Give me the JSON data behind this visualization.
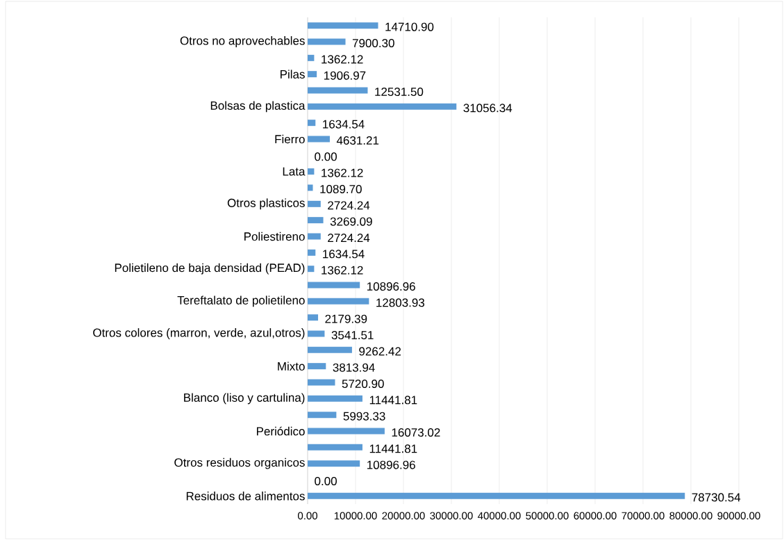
{
  "chart_data": {
    "type": "bar",
    "orientation": "horizontal",
    "color": "#5b9bd5",
    "grid": "x",
    "categories": [
      null,
      "Otros no aprovechables",
      null,
      "Pilas",
      null,
      "Bolsas de plastica",
      null,
      "Fierro",
      null,
      "Lata",
      null,
      "Otros plasticos",
      null,
      "Poliestireno",
      null,
      "Polietileno de baja densidad (PEAD)",
      null,
      "Tereftalato de polietileno",
      null,
      "Otros colores (marron, verde, azul,otros)",
      null,
      "Mixto",
      null,
      "Blanco (liso y cartulina)",
      null,
      "Periódico",
      null,
      "Otros residuos organicos",
      null,
      "Residuos de alimentos"
    ],
    "values": [
      14710.9,
      7900.3,
      1362.12,
      1906.97,
      12531.5,
      31056.34,
      1634.54,
      4631.21,
      0.0,
      1362.12,
      1089.7,
      2724.24,
      3269.09,
      2724.24,
      1634.54,
      1362.12,
      10896.96,
      12803.93,
      2179.39,
      3541.51,
      9262.42,
      3813.94,
      5720.9,
      11441.81,
      5993.33,
      16073.02,
      11441.81,
      10896.96,
      0.0,
      78730.54
    ],
    "value_labels": [
      "14710.90",
      "7900.30",
      "1362.12",
      "1906.97",
      "12531.50",
      "31056.34",
      "1634.54",
      "4631.21",
      "0.00",
      "1362.12",
      "1089.70",
      "2724.24",
      "3269.09",
      "2724.24",
      "1634.54",
      "1362.12",
      "10896.96",
      "12803.93",
      "2179.39",
      "3541.51",
      "9262.42",
      "3813.94",
      "5720.90",
      "11441.81",
      "5993.33",
      "16073.02",
      "11441.81",
      "10896.96",
      "0.00",
      "78730.54"
    ],
    "xlim": [
      0,
      90000
    ],
    "xticks": [
      {
        "value": 0,
        "label": "0.00"
      },
      {
        "value": 10000,
        "label": "10000.00"
      },
      {
        "value": 20000,
        "label": "20000.00"
      },
      {
        "value": 30000,
        "label": "30000.00"
      },
      {
        "value": 40000,
        "label": "40000.00"
      },
      {
        "value": 50000,
        "label": "50000.00"
      },
      {
        "value": 60000,
        "label": "60000.00"
      },
      {
        "value": 70000,
        "label": "70000.00"
      },
      {
        "value": 80000,
        "label": "80000.00"
      },
      {
        "value": 90000,
        "label": "90000.00"
      }
    ]
  }
}
